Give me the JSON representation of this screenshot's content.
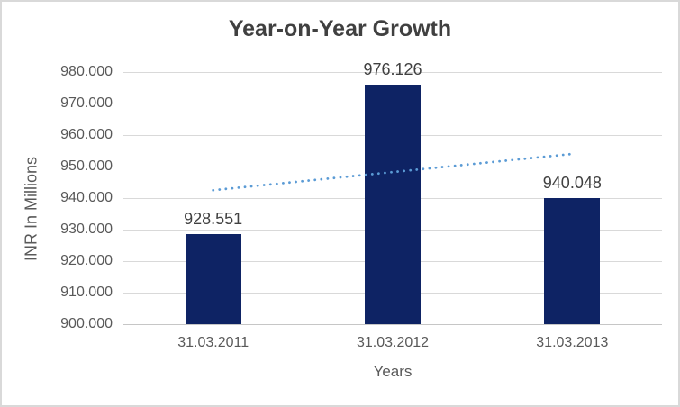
{
  "chart_data": {
    "type": "bar",
    "title": "Year-on-Year Growth",
    "categories": [
      "31.03.2011",
      "31.03.2012",
      "31.03.2013"
    ],
    "values": [
      928.551,
      976.126,
      940.048
    ],
    "data_labels": [
      "928.551",
      "976.126",
      "940.048"
    ],
    "xlabel": "Years",
    "ylabel": "INR In Millions",
    "ylim": [
      900,
      980
    ],
    "ytick_step": 10,
    "ytick_labels": [
      "980.000",
      "970.000",
      "960.000",
      "950.000",
      "940.000",
      "930.000",
      "920.000",
      "910.000",
      "900.000"
    ],
    "grid": true,
    "legend": "none",
    "bar_color": "#0e2364",
    "trendline": {
      "type": "linear",
      "style": "dotted",
      "color": "#5b9bd5",
      "start_value": 942.5,
      "end_value": 954.0
    }
  },
  "colors": {
    "background": "#ffffff",
    "frame_border": "#d9d9d9",
    "gridline": "#d9d9d9",
    "axis_line": "#c6c6c6",
    "title_text": "#404040",
    "axis_text": "#595959",
    "data_label_text": "#404040"
  }
}
